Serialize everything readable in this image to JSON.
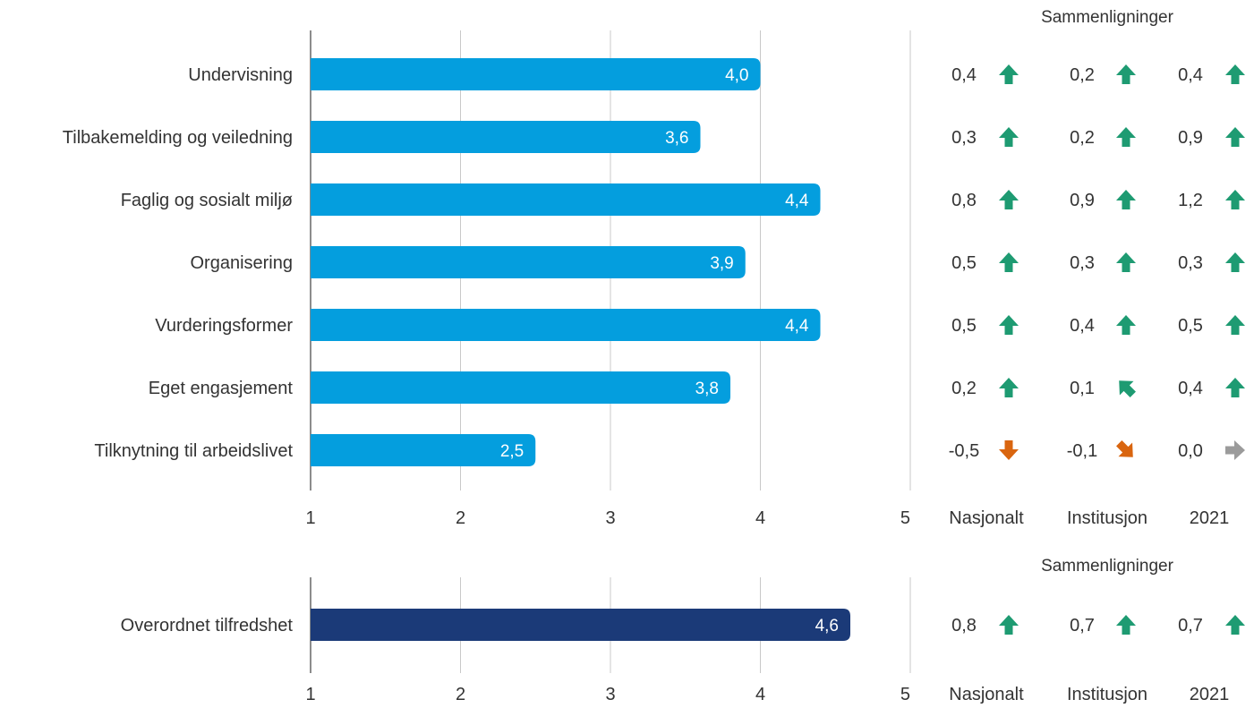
{
  "colors": {
    "bar": "#049ede",
    "bar_overall": "#1b3a78",
    "grid": "#c8c8c8",
    "axis": "#8c8c8c",
    "up": "#1e9b72",
    "down": "#d9650f",
    "neutral": "#9b9b9b"
  },
  "chart_data": [
    {
      "type": "bar",
      "orientation": "horizontal",
      "categories": [
        "Undervisning",
        "Tilbakemelding og veiledning",
        "Faglig og sosialt miljø",
        "Organisering",
        "Vurderingsformer",
        "Eget engasjement",
        "Tilknytning til arbeidslivet"
      ],
      "values": [
        4.0,
        3.6,
        4.4,
        3.9,
        4.4,
        3.8,
        2.5
      ],
      "value_labels": [
        "4,0",
        "3,6",
        "4,4",
        "3,9",
        "4,4",
        "3,8",
        "2,5"
      ],
      "xlim": [
        1,
        5
      ],
      "xticks": [
        "1",
        "2",
        "3",
        "4",
        "5"
      ],
      "grid": true,
      "comparison_title": "Sammenligninger",
      "comparison_columns": [
        "Nasjonalt",
        "Institusjon",
        "2021"
      ],
      "comparisons": [
        [
          {
            "value": "0,4",
            "arrow": "up"
          },
          {
            "value": "0,2",
            "arrow": "up"
          },
          {
            "value": "0,4",
            "arrow": "up"
          }
        ],
        [
          {
            "value": "0,3",
            "arrow": "up"
          },
          {
            "value": "0,2",
            "arrow": "up"
          },
          {
            "value": "0,9",
            "arrow": "up"
          }
        ],
        [
          {
            "value": "0,8",
            "arrow": "up"
          },
          {
            "value": "0,9",
            "arrow": "up"
          },
          {
            "value": "1,2",
            "arrow": "up"
          }
        ],
        [
          {
            "value": "0,5",
            "arrow": "up"
          },
          {
            "value": "0,3",
            "arrow": "up"
          },
          {
            "value": "0,3",
            "arrow": "up"
          }
        ],
        [
          {
            "value": "0,5",
            "arrow": "up"
          },
          {
            "value": "0,4",
            "arrow": "up"
          },
          {
            "value": "0,5",
            "arrow": "up"
          }
        ],
        [
          {
            "value": "0,2",
            "arrow": "up"
          },
          {
            "value": "0,1",
            "arrow": "up-left"
          },
          {
            "value": "0,4",
            "arrow": "up"
          }
        ],
        [
          {
            "value": "-0,5",
            "arrow": "down"
          },
          {
            "value": "-0,1",
            "arrow": "down-right"
          },
          {
            "value": "0,0",
            "arrow": "right"
          }
        ]
      ]
    },
    {
      "type": "bar",
      "orientation": "horizontal",
      "categories": [
        "Overordnet tilfredshet"
      ],
      "values": [
        4.6
      ],
      "value_labels": [
        "4,6"
      ],
      "xlim": [
        1,
        5
      ],
      "xticks": [
        "1",
        "2",
        "3",
        "4",
        "5"
      ],
      "grid": true,
      "comparison_title": "Sammenligninger",
      "comparison_columns": [
        "Nasjonalt",
        "Institusjon",
        "2021"
      ],
      "comparisons": [
        [
          {
            "value": "0,8",
            "arrow": "up"
          },
          {
            "value": "0,7",
            "arrow": "up"
          },
          {
            "value": "0,7",
            "arrow": "up"
          }
        ]
      ]
    }
  ]
}
